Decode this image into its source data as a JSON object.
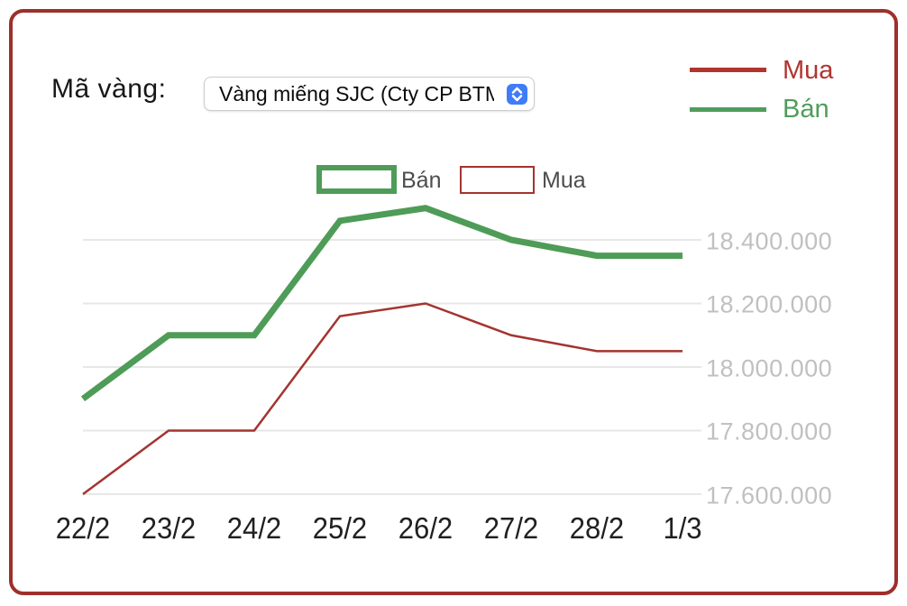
{
  "header": {
    "label": "Mã vàng:",
    "select": {
      "value": "Vàng miếng SJC (Cty CP BTM",
      "stepper_icon": "up-down-chevrons",
      "stepper_color": "#3E7CF8"
    }
  },
  "legend": {
    "items": [
      {
        "label": "Mua",
        "color": "#B0352F"
      },
      {
        "label": "Bán",
        "color": "#4F9D5C"
      }
    ]
  },
  "chart_legend": {
    "ban_label": "Bán",
    "mua_label": "Mua",
    "ban_border_color": "#4E9C57",
    "mua_border_color": "#A4342E",
    "text_color": "#4D4D4D"
  },
  "chart_data": {
    "type": "line",
    "x": [
      "22/2",
      "23/2",
      "24/2",
      "25/2",
      "26/2",
      "27/2",
      "28/2",
      "1/3"
    ],
    "series": [
      {
        "name": "Bán",
        "color": "#4E9C57",
        "stroke_width": 7,
        "values": [
          17900000,
          18100000,
          18100000,
          18460000,
          18500000,
          18400000,
          18350000,
          18350000
        ]
      },
      {
        "name": "Mua",
        "color": "#A4342E",
        "stroke_width": 2.5,
        "values": [
          17600000,
          17800000,
          17800000,
          18160000,
          18200000,
          18100000,
          18050000,
          18050000
        ]
      }
    ],
    "y_ticks": [
      17600000,
      17800000,
      18000000,
      18200000,
      18400000
    ],
    "y_tick_labels": [
      "17.600.000",
      "17.800.000",
      "18.000.000",
      "18.200.000",
      "18.400.000"
    ],
    "ylim": [
      17600000,
      18400000
    ],
    "grid": true,
    "gridline_color": "#E7E7E7",
    "legend_position": "top-right"
  },
  "frame": {
    "border_color": "#9E2F2B"
  }
}
